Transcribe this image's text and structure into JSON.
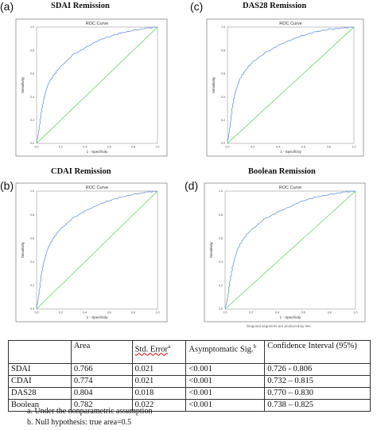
{
  "panels": [
    {
      "letter": "(a)",
      "title": "SDAI Remission",
      "chart_title": "ROC Curve"
    },
    {
      "letter": "(c)",
      "title": "DAS28 Remission",
      "chart_title": "ROC Curve"
    },
    {
      "letter": "(b)",
      "title": "CDAI Remission",
      "chart_title": "ROC Curve"
    },
    {
      "letter": "(d)",
      "title": "Boolean Remission",
      "chart_title": "ROC Curve"
    }
  ],
  "axis": {
    "xlabel": "1 - Specificity",
    "ylabel": "Sensitivity",
    "ticks": [
      "0.0",
      "0.2",
      "0.4",
      "0.6",
      "0.8",
      "1.0"
    ]
  },
  "diagonal_note": "Diagonal segments are produced by ties.",
  "colors": {
    "roc_curve": "#6f93d8",
    "reference_line": "#7ed67e",
    "frame": "#777777"
  },
  "chart_data": [
    {
      "type": "line",
      "title": "ROC Curve",
      "xlabel": "1 - Specificity",
      "ylabel": "Sensitivity",
      "xlim": [
        0,
        1
      ],
      "ylim": [
        0,
        1
      ],
      "grid": false,
      "series": [
        {
          "name": "",
          "x": [
            0,
            0.02,
            0.04,
            0.06,
            0.08,
            0.1,
            0.15,
            0.2,
            0.3,
            0.4,
            0.5,
            0.6,
            0.7,
            0.8,
            0.9,
            1.0
          ],
          "y": [
            0,
            0.12,
            0.28,
            0.38,
            0.46,
            0.52,
            0.6,
            0.66,
            0.76,
            0.82,
            0.88,
            0.92,
            0.95,
            0.97,
            0.99,
            1.0
          ]
        },
        {
          "name": "",
          "x": [
            0,
            1
          ],
          "y": [
            0,
            1
          ]
        }
      ]
    },
    {
      "type": "line",
      "title": "ROC Curve",
      "xlabel": "1 - Specificity",
      "ylabel": "Sensitivity",
      "xlim": [
        0,
        1
      ],
      "ylim": [
        0,
        1
      ],
      "grid": false,
      "series": [
        {
          "name": "",
          "x": [
            0,
            0.02,
            0.04,
            0.06,
            0.08,
            0.1,
            0.15,
            0.2,
            0.3,
            0.4,
            0.5,
            0.6,
            0.7,
            0.8,
            0.9,
            1.0
          ],
          "y": [
            0,
            0.15,
            0.32,
            0.43,
            0.5,
            0.56,
            0.64,
            0.7,
            0.78,
            0.84,
            0.89,
            0.93,
            0.96,
            0.98,
            0.99,
            1.0
          ]
        },
        {
          "name": "",
          "x": [
            0,
            1
          ],
          "y": [
            0,
            1
          ]
        }
      ]
    },
    {
      "type": "line",
      "title": "ROC Curve",
      "xlabel": "1 - Specificity",
      "ylabel": "Sensitivity",
      "xlim": [
        0,
        1
      ],
      "ylim": [
        0,
        1
      ],
      "grid": false,
      "series": [
        {
          "name": "",
          "x": [
            0,
            0.02,
            0.04,
            0.06,
            0.08,
            0.1,
            0.15,
            0.2,
            0.3,
            0.4,
            0.5,
            0.6,
            0.7,
            0.8,
            0.9,
            1.0
          ],
          "y": [
            0,
            0.13,
            0.3,
            0.4,
            0.47,
            0.53,
            0.62,
            0.68,
            0.77,
            0.83,
            0.88,
            0.92,
            0.95,
            0.97,
            0.99,
            1.0
          ]
        },
        {
          "name": "",
          "x": [
            0,
            1
          ],
          "y": [
            0,
            1
          ]
        }
      ]
    },
    {
      "type": "line",
      "title": "ROC Curve",
      "xlabel": "1 - Specificity",
      "ylabel": "Sensitivity",
      "xlim": [
        0,
        1
      ],
      "ylim": [
        0,
        1
      ],
      "grid": false,
      "series": [
        {
          "name": "",
          "x": [
            0,
            0.02,
            0.04,
            0.06,
            0.08,
            0.1,
            0.15,
            0.2,
            0.3,
            0.4,
            0.5,
            0.6,
            0.7,
            0.8,
            0.9,
            1.0
          ],
          "y": [
            0,
            0.1,
            0.25,
            0.37,
            0.45,
            0.52,
            0.61,
            0.67,
            0.76,
            0.82,
            0.87,
            0.92,
            0.95,
            0.97,
            0.99,
            1.0
          ]
        },
        {
          "name": "",
          "x": [
            0,
            1
          ],
          "y": [
            0,
            1
          ]
        }
      ]
    },
    {
      "type": "table",
      "columns": [
        "",
        "Area",
        "Std. Error",
        "Asymptomatic Sig.",
        "Confidence Interval (95%)"
      ],
      "rows": [
        [
          "SDAI",
          "0.766",
          "0.021",
          "<0.001",
          "0.726 - 0.806"
        ],
        [
          "CDAI",
          "0.774",
          "0.021",
          "<0.001",
          "0.732 – 0.815"
        ],
        [
          "DAS28",
          "0.804",
          "0.018",
          "<0.001",
          "0.770 – 0.830"
        ],
        [
          "Boolean",
          "0.782",
          "0.022",
          "<0.001",
          "0.738 – 0.825"
        ]
      ]
    }
  ],
  "table": {
    "headers": {
      "area": "Area",
      "std_error": "Std. Error",
      "std_error_sup": "a",
      "sig": "Asymptomatic Sig.",
      "sig_sup": "b",
      "ci": "Confidence Interval (95%)"
    },
    "rows": [
      {
        "name": "SDAI",
        "area": "0.766",
        "se": "0.021",
        "sig": "<0.001",
        "ci": "0.726 - 0.806"
      },
      {
        "name": "CDAI",
        "area": "0.774",
        "se": "0.021",
        "sig": "<0.001",
        "ci": "0.732 – 0.815"
      },
      {
        "name": "DAS28",
        "area": "0.804",
        "se": "0.018",
        "sig": "<0.001",
        "ci": "0.770 – 0.830"
      },
      {
        "name": "Boolean",
        "area": "0.782",
        "se": "0.022",
        "sig": "<0.001",
        "ci": "0.738 – 0.825"
      }
    ]
  },
  "footnotes": {
    "a": "a.   Under the nonparametric assumption",
    "b": "b.   Null hypothesis: true area=0.5"
  }
}
